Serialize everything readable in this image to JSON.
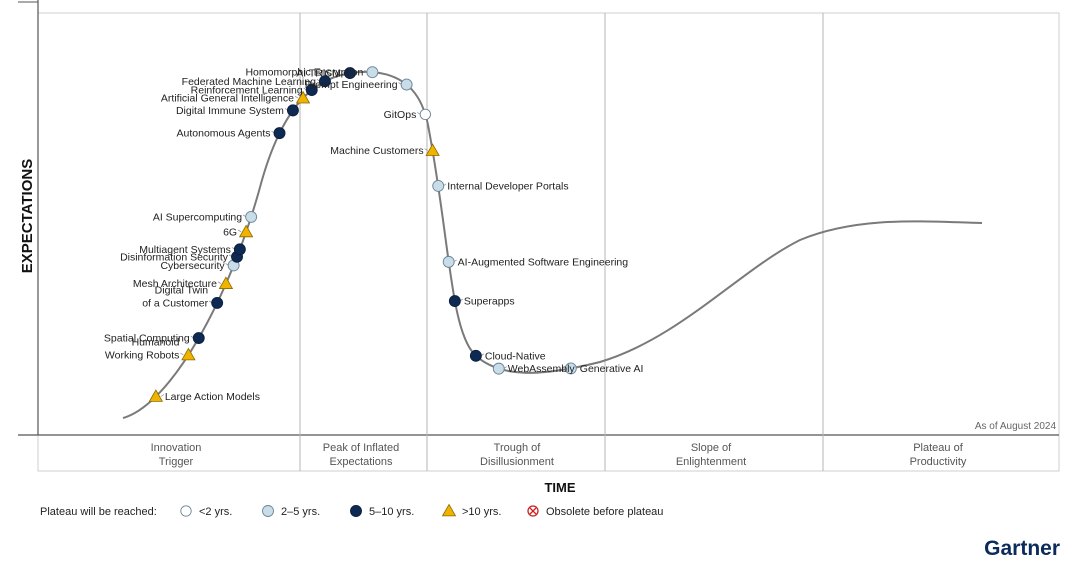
{
  "chart_data": {
    "type": "scatter",
    "xlabel": "TIME",
    "ylabel": "EXPECTATIONS",
    "note": "As of August 2024",
    "phases": [
      "Innovation\nTrigger",
      "Peak of Inflated\nExpectations",
      "Trough of\nDisillusionment",
      "Slope of\nEnlightenment",
      "Plateau of\nProductivity"
    ],
    "legend": {
      "title": "Plateau will be reached:",
      "items": [
        {
          "key": "lt2",
          "label": "<2 yrs."
        },
        {
          "key": "2to5",
          "label": "2–5 yrs."
        },
        {
          "key": "5to10",
          "label": "5–10 yrs."
        },
        {
          "key": "gt10",
          "label": ">10 yrs."
        },
        {
          "key": "obsolete",
          "label": "Obsolete before plateau"
        }
      ]
    },
    "category_colors": {
      "lt2": "#ffffff",
      "2to5": "#c9dde9",
      "5to10": "#0f2a52",
      "gt10": "#f0b400",
      "obsolete": "#cc2222"
    },
    "points": [
      {
        "name": "Large Action Models",
        "cat": "gt10",
        "t": 0.03,
        "side": "right"
      },
      {
        "name": "Humanoid\nWorking Robots",
        "cat": "gt10",
        "t": 0.07,
        "side": "left"
      },
      {
        "name": "Spatial Computing",
        "cat": "5to10",
        "t": 0.085,
        "side": "left"
      },
      {
        "name": "Digital Twin\nof a Customer",
        "cat": "5to10",
        "t": 0.115,
        "side": "left"
      },
      {
        "name": "Mesh Architecture",
        "cat": "gt10",
        "t": 0.131,
        "side": "left"
      },
      {
        "name": "Cybersecurity",
        "cat": "2to5",
        "t": 0.146,
        "side": "left"
      },
      {
        "name": "Disinformation Security",
        "cat": "5to10",
        "t": 0.153,
        "side": "left"
      },
      {
        "name": "Multiagent Systems",
        "cat": "5to10",
        "t": 0.159,
        "side": "left"
      },
      {
        "name": "6G",
        "cat": "gt10",
        "t": 0.173,
        "side": "left"
      },
      {
        "name": "AI Supercomputing",
        "cat": "2to5",
        "t": 0.185,
        "side": "left"
      },
      {
        "name": "Autonomous Agents",
        "cat": "5to10",
        "t": 0.252,
        "side": "left"
      },
      {
        "name": "Digital Immune System",
        "cat": "5to10",
        "t": 0.272,
        "side": "left"
      },
      {
        "name": "Artificial General Intelligence",
        "cat": "gt10",
        "t": 0.284,
        "side": "left"
      },
      {
        "name": "Reinforcement Learning",
        "cat": "5to10",
        "t": 0.293,
        "side": "left"
      },
      {
        "name": "Federated Machine Learning",
        "cat": "5to10",
        "t": 0.305,
        "side": "left"
      },
      {
        "name": "AI TRiSM",
        "cat": "5to10",
        "t": 0.325,
        "side": "left"
      },
      {
        "name": "Homomorphic Encryption",
        "cat": "2to5",
        "t": 0.342,
        "side": "left"
      },
      {
        "name": "Prompt Engineering",
        "cat": "2to5",
        "t": 0.37,
        "side": "left"
      },
      {
        "name": "GitOps",
        "cat": "lt2",
        "t": 0.397,
        "side": "left"
      },
      {
        "name": "Machine Customers",
        "cat": "gt10",
        "t": 0.425,
        "side": "left"
      },
      {
        "name": "Internal Developer Portals",
        "cat": "2to5",
        "t": 0.452,
        "side": "right"
      },
      {
        "name": "AI-Augmented Software Engineering",
        "cat": "2to5",
        "t": 0.51,
        "side": "right"
      },
      {
        "name": "Superapps",
        "cat": "5to10",
        "t": 0.54,
        "side": "right"
      },
      {
        "name": "Cloud-Native",
        "cat": "5to10",
        "t": 0.585,
        "side": "right"
      },
      {
        "name": "WebAssembly",
        "cat": "2to5",
        "t": 0.605,
        "side": "right"
      },
      {
        "name": "Generative AI",
        "cat": "2to5",
        "t": 0.66,
        "side": "right"
      }
    ]
  },
  "brand": "Gartner"
}
